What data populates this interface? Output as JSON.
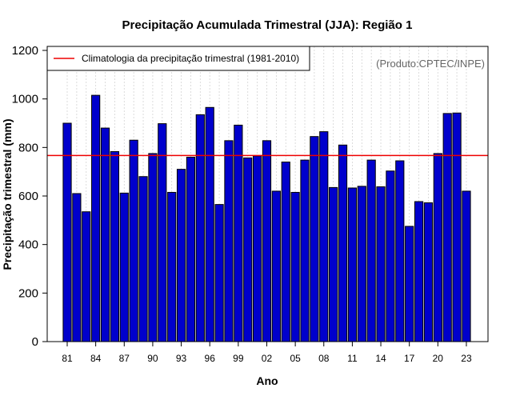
{
  "chart_data": {
    "type": "bar",
    "title": "Precipitação Acumulada Trimestral (JJA): Região 1",
    "xlabel": "Ano",
    "ylabel": "Precipitação trimestral (mm)",
    "ylim": [
      0,
      1200
    ],
    "yticks": [
      "0",
      "200",
      "400",
      "600",
      "800",
      "1000",
      "1200"
    ],
    "xtick_labels": [
      "81",
      "84",
      "87",
      "90",
      "93",
      "96",
      "99",
      "02",
      "05",
      "08",
      "11",
      "14",
      "17",
      "20",
      "23"
    ],
    "categories": [
      1981,
      1982,
      1983,
      1984,
      1985,
      1986,
      1987,
      1988,
      1989,
      1990,
      1991,
      1992,
      1993,
      1994,
      1995,
      1996,
      1997,
      1998,
      1999,
      2000,
      2001,
      2002,
      2003,
      2004,
      2005,
      2006,
      2007,
      2008,
      2009,
      2010,
      2011,
      2012,
      2013,
      2014,
      2015,
      2016,
      2017,
      2018,
      2019,
      2020,
      2021,
      2022,
      2023
    ],
    "values": [
      900,
      610,
      535,
      1015,
      880,
      783,
      612,
      830,
      680,
      775,
      898,
      615,
      710,
      760,
      935,
      965,
      565,
      828,
      892,
      757,
      765,
      828,
      620,
      740,
      615,
      748,
      845,
      865,
      635,
      810,
      633,
      640,
      748,
      638,
      703,
      745,
      475,
      577,
      572,
      775,
      940,
      942,
      620
    ],
    "climatology": {
      "value": 767,
      "label": "Climatologia da precipitação trimestral (1981-2010)",
      "color": "#ee0000"
    },
    "bar_color": "#0000cc",
    "legend_position": "top-left",
    "credit": "(Produto:CPTEC/INPE)"
  }
}
